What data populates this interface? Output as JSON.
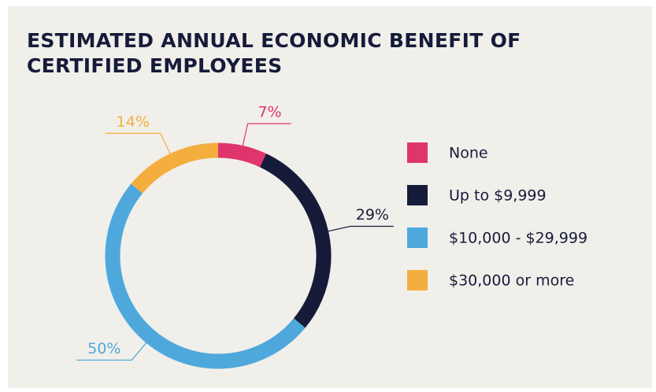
{
  "chart_data": {
    "type": "donut",
    "title": "ESTIMATED ANNUAL ECONOMIC BENEFIT OF CERTIFIED EMPLOYEES",
    "categories": [
      "None",
      "Up to $9,999",
      "$10,000 - $29,999",
      "$30,000 or more"
    ],
    "values": [
      7,
      29,
      50,
      14
    ],
    "value_labels": [
      "7%",
      "29%",
      "50%",
      "14%"
    ],
    "colors": [
      "#e0346c",
      "#161b3a",
      "#4ea8dc",
      "#f3ae3e"
    ],
    "legend": "right"
  }
}
